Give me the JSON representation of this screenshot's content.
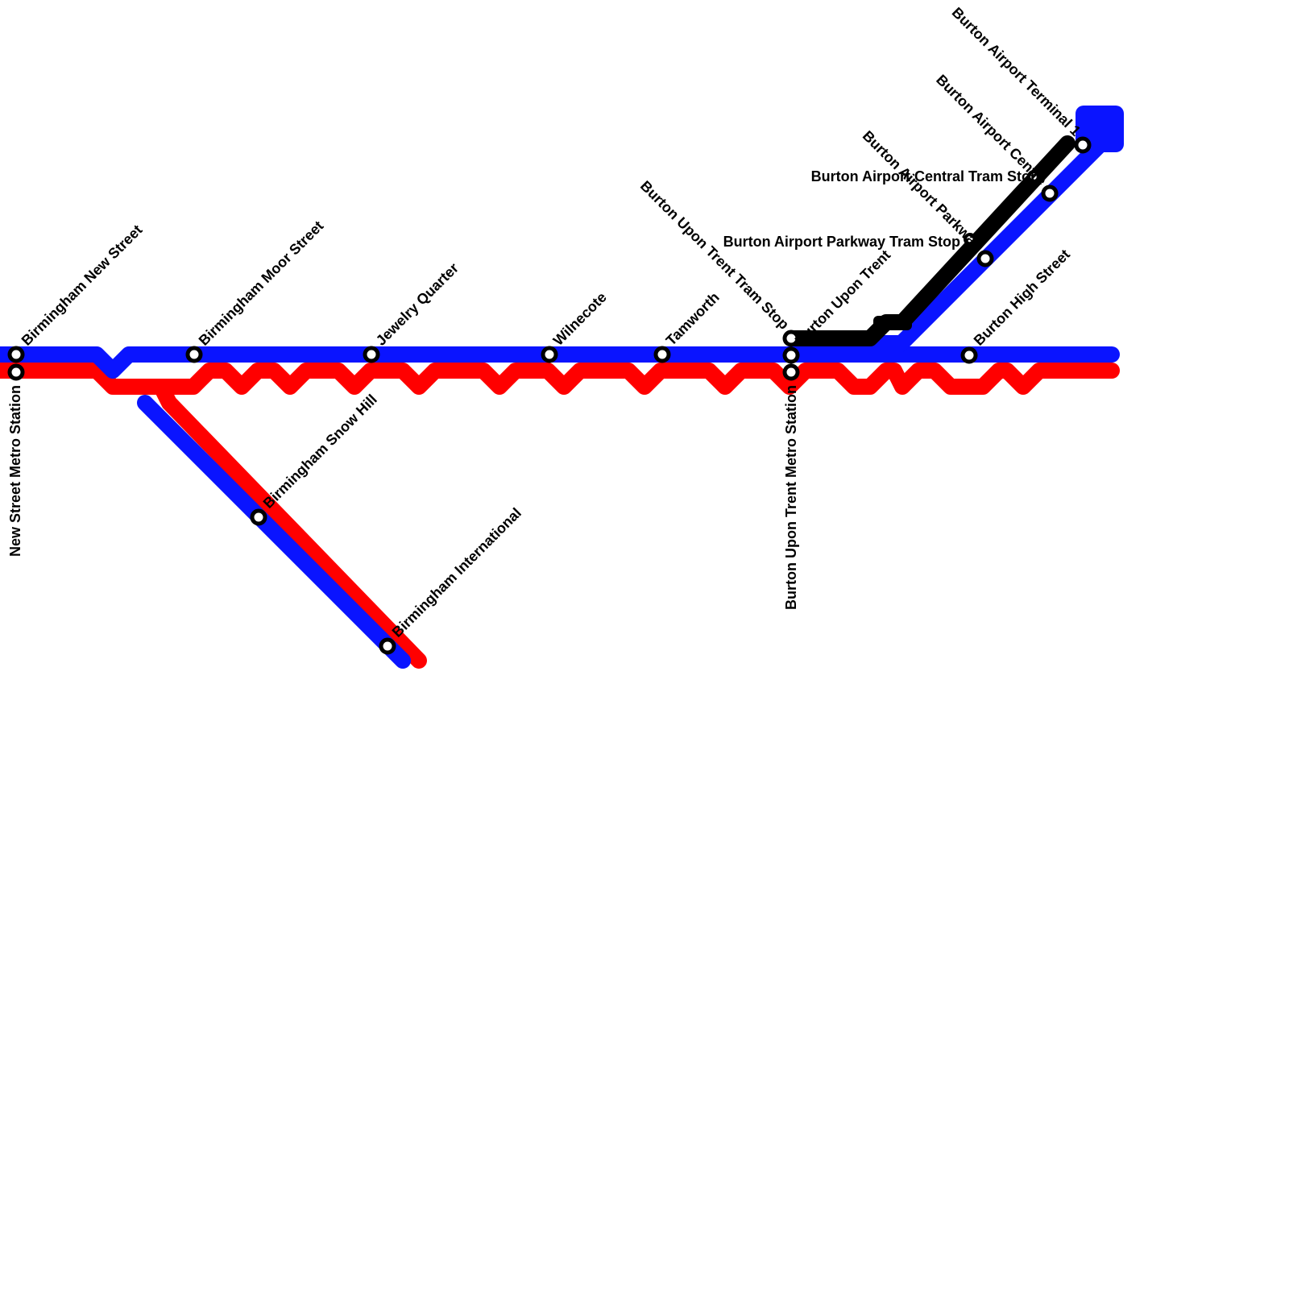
{
  "lines": [
    {
      "id": "red",
      "color": "#ff0000",
      "width": 20
    },
    {
      "id": "blue",
      "color": "#0a14ff",
      "width": 20
    },
    {
      "id": "black",
      "color": "#000000",
      "width": 20
    }
  ],
  "stations": [
    {
      "id": "birmingham-new-street",
      "name": "Birmingham New Street"
    },
    {
      "id": "new-street-metro-station",
      "name": "New Street Metro Station"
    },
    {
      "id": "birmingham-moor-street",
      "name": "Birmingham Moor Street"
    },
    {
      "id": "jewelry-quarter",
      "name": "Jewelry Quarter"
    },
    {
      "id": "wilnecote",
      "name": "Wilnecote"
    },
    {
      "id": "tamworth",
      "name": "Tamworth"
    },
    {
      "id": "birmingham-snow-hill",
      "name": "Birmingham Snow Hill"
    },
    {
      "id": "birmingham-international",
      "name": "Birmingham International"
    },
    {
      "id": "burton-upon-trent-tram-stop",
      "name": "Burton Upon Trent Tram Stop"
    },
    {
      "id": "burton-upon-trent",
      "name": "Burton Upon Trent"
    },
    {
      "id": "burton-upon-trent-metro-station",
      "name": "Burton Upon Trent Metro Station"
    },
    {
      "id": "burton-high-street",
      "name": "Burton High Street"
    },
    {
      "id": "burton-airport-parkway-tram-stop",
      "name": "Burton Airport Parkway Tram Stop"
    },
    {
      "id": "burton-airport-parkway",
      "name": "Burton Airport Parkway"
    },
    {
      "id": "burton-airport-central-tram-stop",
      "name": "Burton Airport Central Tram Stop"
    },
    {
      "id": "burton-airport-centre",
      "name": "Burton Airport Centre"
    },
    {
      "id": "burton-airport-terminal",
      "name": "Burton Airport Terminal 1"
    }
  ]
}
